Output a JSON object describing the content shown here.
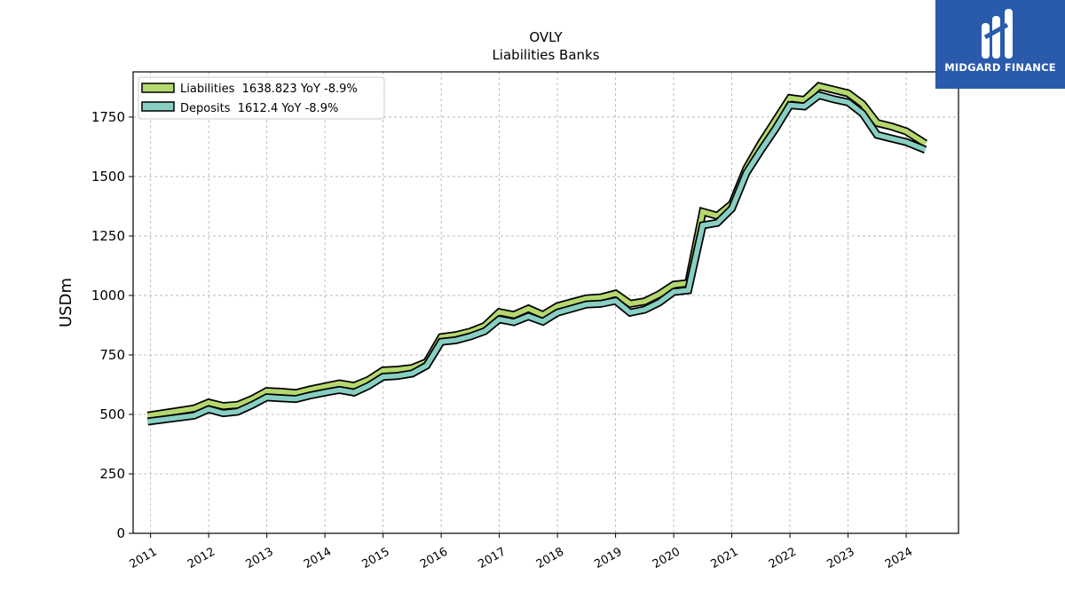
{
  "chart_data": {
    "type": "line",
    "title": "OVLY",
    "subtitle": "Liabilities Banks",
    "ylabel": "USDm",
    "ylim": [
      0,
      1940
    ],
    "xlim": [
      2010.7,
      2024.9
    ],
    "yticks": [
      0,
      250,
      500,
      750,
      1000,
      1250,
      1500,
      1750
    ],
    "xticks": [
      "2011",
      "2012",
      "2013",
      "2014",
      "2015",
      "2016",
      "2017",
      "2018",
      "2019",
      "2020",
      "2021",
      "2022",
      "2023",
      "2024"
    ],
    "grid": true,
    "legend_position": "top-left",
    "series": [
      {
        "name": "Liabilities",
        "legend_label": "Liabilities  1638.823 YoY -8.9%",
        "color": "#b5d86e",
        "points": [
          [
            2010.95,
            495
          ],
          [
            2011.75,
            525
          ],
          [
            2012.0,
            550
          ],
          [
            2012.25,
            535
          ],
          [
            2012.5,
            540
          ],
          [
            2012.75,
            565
          ],
          [
            2013.0,
            598
          ],
          [
            2013.25,
            595
          ],
          [
            2013.5,
            590
          ],
          [
            2013.75,
            605
          ],
          [
            2014.0,
            618
          ],
          [
            2014.25,
            630
          ],
          [
            2014.5,
            620
          ],
          [
            2014.75,
            645
          ],
          [
            2015.0,
            685
          ],
          [
            2015.25,
            688
          ],
          [
            2015.5,
            695
          ],
          [
            2015.75,
            720
          ],
          [
            2016.0,
            825
          ],
          [
            2016.25,
            833
          ],
          [
            2016.5,
            848
          ],
          [
            2016.75,
            872
          ],
          [
            2017.0,
            930
          ],
          [
            2017.25,
            918
          ],
          [
            2017.5,
            945
          ],
          [
            2017.75,
            918
          ],
          [
            2018.0,
            955
          ],
          [
            2018.25,
            972
          ],
          [
            2018.5,
            988
          ],
          [
            2018.75,
            992
          ],
          [
            2019.0,
            1008
          ],
          [
            2019.25,
            965
          ],
          [
            2019.5,
            975
          ],
          [
            2019.75,
            1005
          ],
          [
            2020.0,
            1045
          ],
          [
            2020.25,
            1052
          ],
          [
            2020.5,
            1352
          ],
          [
            2020.75,
            1335
          ],
          [
            2021.0,
            1385
          ],
          [
            2021.25,
            1535
          ],
          [
            2021.5,
            1640
          ],
          [
            2021.75,
            1735
          ],
          [
            2022.0,
            1830
          ],
          [
            2022.25,
            1822
          ],
          [
            2022.5,
            1880
          ],
          [
            2022.75,
            1865
          ],
          [
            2023.0,
            1850
          ],
          [
            2023.25,
            1805
          ],
          [
            2023.5,
            1725
          ],
          [
            2023.75,
            1710
          ],
          [
            2024.0,
            1690
          ],
          [
            2024.33,
            1638.823
          ]
        ]
      },
      {
        "name": "Deposits",
        "legend_label": "Deposits  1612.4 YoY -8.9%",
        "color": "#88cfc3",
        "points": [
          [
            2010.95,
            470
          ],
          [
            2011.75,
            495
          ],
          [
            2012.0,
            522
          ],
          [
            2012.25,
            505
          ],
          [
            2012.5,
            512
          ],
          [
            2012.75,
            540
          ],
          [
            2013.0,
            572
          ],
          [
            2013.25,
            568
          ],
          [
            2013.5,
            565
          ],
          [
            2013.75,
            580
          ],
          [
            2014.0,
            592
          ],
          [
            2014.25,
            603
          ],
          [
            2014.5,
            592
          ],
          [
            2014.75,
            620
          ],
          [
            2015.0,
            658
          ],
          [
            2015.25,
            662
          ],
          [
            2015.5,
            672
          ],
          [
            2015.75,
            705
          ],
          [
            2016.0,
            805
          ],
          [
            2016.25,
            812
          ],
          [
            2016.5,
            828
          ],
          [
            2016.75,
            850
          ],
          [
            2017.0,
            900
          ],
          [
            2017.25,
            888
          ],
          [
            2017.5,
            912
          ],
          [
            2017.75,
            890
          ],
          [
            2018.0,
            928
          ],
          [
            2018.25,
            945
          ],
          [
            2018.5,
            962
          ],
          [
            2018.75,
            965
          ],
          [
            2019.0,
            978
          ],
          [
            2019.25,
            928
          ],
          [
            2019.5,
            940
          ],
          [
            2019.75,
            970
          ],
          [
            2020.0,
            1015
          ],
          [
            2020.25,
            1022
          ],
          [
            2020.5,
            1295
          ],
          [
            2020.75,
            1305
          ],
          [
            2021.0,
            1365
          ],
          [
            2021.25,
            1515
          ],
          [
            2021.5,
            1610
          ],
          [
            2021.75,
            1700
          ],
          [
            2022.0,
            1800
          ],
          [
            2022.25,
            1795
          ],
          [
            2022.5,
            1842
          ],
          [
            2022.75,
            1825
          ],
          [
            2023.0,
            1812
          ],
          [
            2023.25,
            1765
          ],
          [
            2023.5,
            1675
          ],
          [
            2023.75,
            1660
          ],
          [
            2024.0,
            1645
          ],
          [
            2024.33,
            1612.4
          ]
        ]
      }
    ]
  },
  "logo": {
    "text": "MIDGARD FINANCE",
    "color": "#2a5aab"
  }
}
